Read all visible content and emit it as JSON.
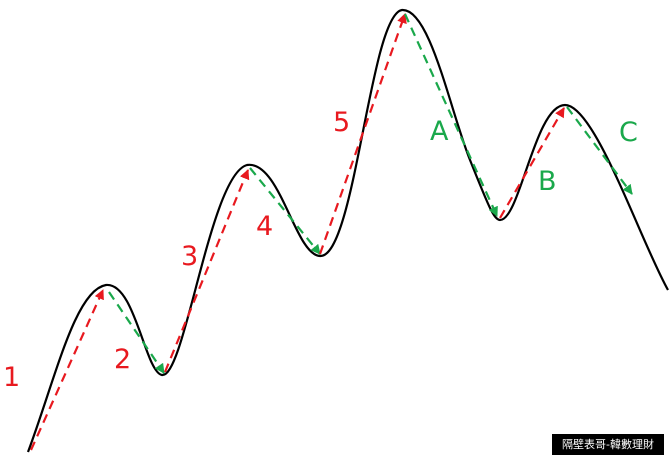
{
  "colors": {
    "price_curve": "#000000",
    "impulse": "#e8191f",
    "corrective": "#1aa84b",
    "background": "#ffffff"
  },
  "waves": {
    "impulse": [
      {
        "label": "1",
        "kind": "impulse",
        "direction": "up"
      },
      {
        "label": "2",
        "kind": "corrective",
        "direction": "down"
      },
      {
        "label": "3",
        "kind": "impulse",
        "direction": "up"
      },
      {
        "label": "4",
        "kind": "corrective",
        "direction": "down"
      },
      {
        "label": "5",
        "kind": "impulse",
        "direction": "up"
      }
    ],
    "corrective": [
      {
        "label": "A",
        "kind": "corrective",
        "direction": "down"
      },
      {
        "label": "B",
        "kind": "impulse",
        "direction": "up"
      },
      {
        "label": "C",
        "kind": "corrective",
        "direction": "down"
      }
    ]
  },
  "watermark": "隔壁表哥-韓數理財"
}
